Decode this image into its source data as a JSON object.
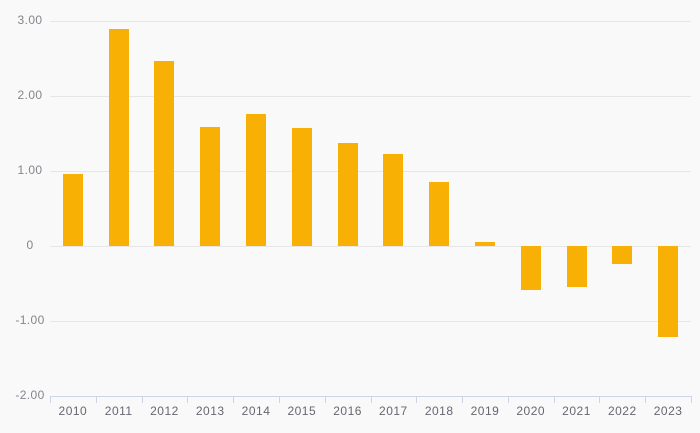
{
  "chart_data": {
    "type": "bar",
    "title": "",
    "xlabel": "",
    "ylabel": "",
    "categories": [
      "2010",
      "2011",
      "2012",
      "2013",
      "2014",
      "2015",
      "2016",
      "2017",
      "2018",
      "2019",
      "2020",
      "2021",
      "2022",
      "2023"
    ],
    "values": [
      0.96,
      2.89,
      2.47,
      1.59,
      1.76,
      1.57,
      1.38,
      1.23,
      0.86,
      0.05,
      -0.59,
      -0.54,
      -0.24,
      -1.21
    ],
    "ylim": [
      -2,
      3
    ],
    "y_ticks": [
      {
        "value": 3,
        "label": "3.00"
      },
      {
        "value": 2,
        "label": "2.00"
      },
      {
        "value": 1,
        "label": "1.00"
      },
      {
        "value": 0,
        "label": "0"
      },
      {
        "value": -1,
        "label": "-1.00"
      },
      {
        "value": -2,
        "label": "-2.00"
      }
    ],
    "grid": true,
    "legend": false,
    "legend_position": "none"
  },
  "colors": {
    "background": "#f9f9f9",
    "bar": "#F9B005",
    "gridline": "#e6e6e6",
    "axis": "#ccd6eb",
    "y_label_color": "#85858d",
    "x_label_color": "#67676f"
  }
}
